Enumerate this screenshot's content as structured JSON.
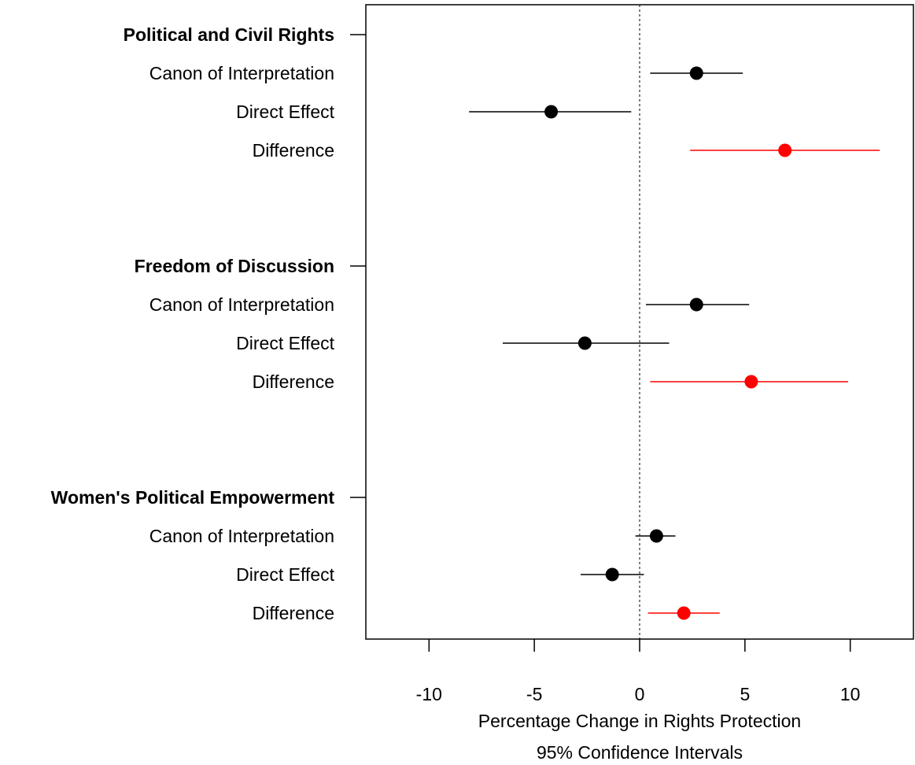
{
  "chart_data": {
    "type": "forest",
    "xlabel": "Percentage Change in Rights Protection",
    "xlabel_sub": "95% Confidence Intervals",
    "xlim": [
      -13,
      13
    ],
    "xticks": [
      -10,
      -5,
      0,
      5,
      10
    ],
    "reference_line": 0,
    "grid": false,
    "colors": {
      "estimate": "#000000",
      "difference": "#ff0000"
    },
    "groups": [
      {
        "name": "Political and Civil Rights",
        "rows": [
          {
            "label": "Canon of Interpretation",
            "estimate": 2.7,
            "lower": 0.5,
            "upper": 4.9,
            "highlight": false
          },
          {
            "label": "Direct Effect",
            "estimate": -4.2,
            "lower": -8.1,
            "upper": -0.4,
            "highlight": false
          },
          {
            "label": "Difference",
            "estimate": 6.9,
            "lower": 2.4,
            "upper": 11.4,
            "highlight": true
          }
        ]
      },
      {
        "name": "Freedom of Discussion",
        "rows": [
          {
            "label": "Canon of Interpretation",
            "estimate": 2.7,
            "lower": 0.3,
            "upper": 5.2,
            "highlight": false
          },
          {
            "label": "Direct Effect",
            "estimate": -2.6,
            "lower": -6.5,
            "upper": 1.4,
            "highlight": false
          },
          {
            "label": "Difference",
            "estimate": 5.3,
            "lower": 0.5,
            "upper": 9.9,
            "highlight": true
          }
        ]
      },
      {
        "name": "Women's Political Empowerment",
        "rows": [
          {
            "label": "Canon of Interpretation",
            "estimate": 0.8,
            "lower": -0.2,
            "upper": 1.7,
            "highlight": false
          },
          {
            "label": "Direct Effect",
            "estimate": -1.3,
            "lower": -2.8,
            "upper": 0.2,
            "highlight": false
          },
          {
            "label": "Difference",
            "estimate": 2.1,
            "lower": 0.4,
            "upper": 3.8,
            "highlight": true
          }
        ]
      }
    ]
  }
}
